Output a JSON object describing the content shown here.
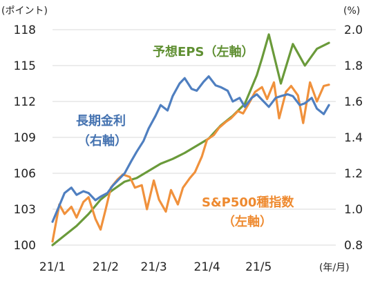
{
  "chart_data": {
    "type": "line",
    "left_axis": {
      "unit": "(ポイント)",
      "ticks": [
        100,
        103,
        106,
        109,
        112,
        115,
        118
      ],
      "ylim": [
        100,
        118
      ]
    },
    "right_axis": {
      "unit": "(%)",
      "ticks": [
        "0.8",
        "1.0",
        "1.2",
        "1.4",
        "1.6",
        "1.8",
        "2.0"
      ],
      "ylim": [
        0.8,
        2.0
      ]
    },
    "x_axis": {
      "unit": "(年/月)",
      "ticks": [
        "21/1",
        "21/2",
        "21/3",
        "21/4",
        "21/5"
      ]
    },
    "grid": "horizontal",
    "annotations": {
      "eps": "予想EPS（左軸）",
      "yield_line1": "長期金利",
      "yield_line2": "（右軸）",
      "sp_line1": "S&P500種指数",
      "sp_line2": "（左軸）"
    },
    "series": [
      {
        "key": "eps",
        "axis": "left",
        "color": "#6a9a3a",
        "x": [
          "2021-01-01",
          "2021-01-08",
          "2021-01-15",
          "2021-01-22",
          "2021-01-29",
          "2021-02-05",
          "2021-02-12",
          "2021-02-19",
          "2021-02-26",
          "2021-03-05",
          "2021-03-12",
          "2021-03-19",
          "2021-03-26",
          "2021-04-02",
          "2021-04-09",
          "2021-04-16",
          "2021-04-23",
          "2021-04-30",
          "2021-05-03",
          "2021-05-07",
          "2021-05-14",
          "2021-05-21",
          "2021-05-28",
          "2021-06-04",
          "2021-06-11"
        ],
        "y": [
          100.0,
          100.8,
          101.6,
          102.6,
          103.8,
          104.6,
          105.3,
          105.6,
          106.2,
          106.8,
          107.2,
          107.7,
          108.3,
          108.9,
          110.0,
          110.8,
          111.8,
          114.2,
          115.6,
          117.6,
          113.5,
          116.8,
          115.0,
          116.4,
          116.9
        ]
      },
      {
        "key": "sp500",
        "axis": "left",
        "color": "#f0913c",
        "x": [
          "2021-01-01",
          "2021-01-05",
          "2021-01-08",
          "2021-01-12",
          "2021-01-15",
          "2021-01-19",
          "2021-01-22",
          "2021-01-26",
          "2021-01-29",
          "2021-02-01",
          "2021-02-04",
          "2021-02-08",
          "2021-02-11",
          "2021-02-15",
          "2021-02-18",
          "2021-02-22",
          "2021-02-25",
          "2021-03-01",
          "2021-03-04",
          "2021-03-08",
          "2021-03-11",
          "2021-03-15",
          "2021-03-18",
          "2021-03-22",
          "2021-03-25",
          "2021-03-29",
          "2021-04-01",
          "2021-04-05",
          "2021-04-08",
          "2021-04-12",
          "2021-04-15",
          "2021-04-19",
          "2021-04-22",
          "2021-04-26",
          "2021-04-29",
          "2021-05-03",
          "2021-05-06",
          "2021-05-10",
          "2021-05-13",
          "2021-05-17",
          "2021-05-20",
          "2021-05-24",
          "2021-05-27",
          "2021-05-31",
          "2021-06-04",
          "2021-06-08",
          "2021-06-11"
        ],
        "y": [
          100.3,
          103.4,
          102.6,
          103.2,
          102.3,
          103.6,
          104.0,
          102.2,
          101.3,
          103.0,
          104.8,
          105.5,
          105.9,
          105.7,
          104.8,
          105.0,
          103.0,
          105.4,
          103.8,
          102.8,
          104.6,
          103.4,
          104.8,
          105.6,
          106.1,
          107.4,
          108.8,
          109.2,
          109.8,
          110.3,
          110.6,
          111.2,
          111.0,
          112.0,
          112.8,
          113.2,
          112.2,
          113.6,
          110.6,
          112.8,
          113.3,
          112.5,
          110.2,
          113.6,
          112.0,
          113.3,
          113.4
        ]
      },
      {
        "key": "yield",
        "axis": "right",
        "color": "#4f7fc0",
        "x": [
          "2021-01-01",
          "2021-01-05",
          "2021-01-08",
          "2021-01-12",
          "2021-01-15",
          "2021-01-19",
          "2021-01-22",
          "2021-01-26",
          "2021-01-29",
          "2021-02-02",
          "2021-02-05",
          "2021-02-09",
          "2021-02-12",
          "2021-02-16",
          "2021-02-19",
          "2021-02-23",
          "2021-02-26",
          "2021-03-02",
          "2021-03-05",
          "2021-03-09",
          "2021-03-12",
          "2021-03-16",
          "2021-03-19",
          "2021-03-23",
          "2021-03-26",
          "2021-03-30",
          "2021-04-02",
          "2021-04-06",
          "2021-04-09",
          "2021-04-13",
          "2021-04-16",
          "2021-04-20",
          "2021-04-23",
          "2021-04-27",
          "2021-04-30",
          "2021-05-04",
          "2021-05-07",
          "2021-05-11",
          "2021-05-14",
          "2021-05-18",
          "2021-05-21",
          "2021-05-25",
          "2021-05-28",
          "2021-06-01",
          "2021-06-04",
          "2021-06-08",
          "2021-06-11"
        ],
        "y": [
          0.93,
          1.02,
          1.09,
          1.12,
          1.08,
          1.1,
          1.09,
          1.05,
          1.07,
          1.09,
          1.13,
          1.17,
          1.2,
          1.27,
          1.32,
          1.38,
          1.45,
          1.52,
          1.58,
          1.55,
          1.63,
          1.7,
          1.73,
          1.67,
          1.66,
          1.71,
          1.74,
          1.69,
          1.68,
          1.66,
          1.6,
          1.62,
          1.57,
          1.62,
          1.64,
          1.6,
          1.57,
          1.62,
          1.63,
          1.64,
          1.63,
          1.58,
          1.59,
          1.62,
          1.56,
          1.53,
          1.58
        ]
      }
    ]
  }
}
